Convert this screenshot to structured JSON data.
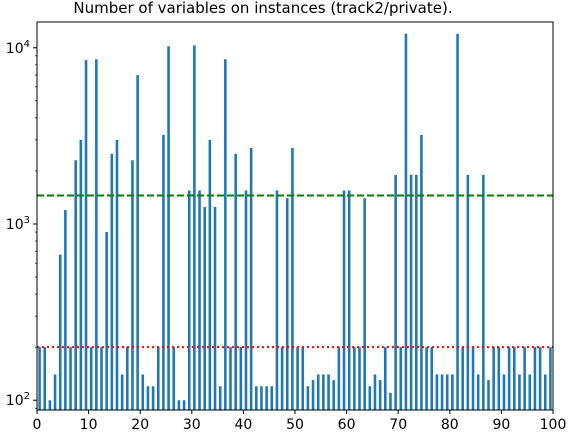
{
  "chart_data": {
    "type": "bar",
    "title": "Number of variables on instances (track2/private).",
    "xlabel": "",
    "ylabel": "",
    "yscale": "log",
    "xlim": [
      0,
      100
    ],
    "ylim": [
      88,
      14000
    ],
    "x_ticks": [
      0,
      10,
      20,
      30,
      40,
      50,
      60,
      70,
      80,
      90,
      100
    ],
    "y_ticks": [
      {
        "value": 100,
        "base": "10",
        "exp": "2"
      },
      {
        "value": 1000,
        "base": "10",
        "exp": "3"
      },
      {
        "value": 10000,
        "base": "10",
        "exp": "4"
      }
    ],
    "bar_color": "#1f77b4",
    "x": [
      0,
      1,
      2,
      3,
      4,
      5,
      6,
      7,
      8,
      9,
      10,
      11,
      12,
      13,
      14,
      15,
      16,
      17,
      18,
      19,
      20,
      21,
      22,
      23,
      24,
      25,
      26,
      27,
      28,
      29,
      30,
      31,
      32,
      33,
      34,
      35,
      36,
      37,
      38,
      39,
      40,
      41,
      42,
      43,
      44,
      45,
      46,
      47,
      48,
      49,
      50,
      51,
      52,
      53,
      54,
      55,
      56,
      57,
      58,
      59,
      60,
      61,
      62,
      63,
      64,
      65,
      66,
      67,
      68,
      69,
      70,
      71,
      72,
      73,
      74,
      75,
      76,
      77,
      78,
      79,
      80,
      81,
      82,
      83,
      84,
      85,
      86,
      87,
      88,
      89,
      90,
      91,
      92,
      93,
      94,
      95,
      96,
      97,
      98,
      99
    ],
    "values": [
      200,
      200,
      100,
      140,
      670,
      1200,
      200,
      2300,
      3000,
      8500,
      200,
      8600,
      200,
      900,
      2500,
      3000,
      140,
      200,
      2300,
      7000,
      140,
      120,
      120,
      200,
      3200,
      10200,
      200,
      100,
      100,
      1550,
      10300,
      1550,
      1250,
      3000,
      1250,
      120,
      8600,
      200,
      2500,
      200,
      1550,
      2700,
      120,
      120,
      120,
      120,
      1550,
      200,
      1400,
      2700,
      200,
      200,
      120,
      130,
      140,
      140,
      140,
      130,
      200,
      1550,
      1550,
      200,
      200,
      1400,
      120,
      140,
      130,
      200,
      110,
      1900,
      200,
      12000,
      1900,
      1900,
      3200,
      200,
      200,
      140,
      140,
      140,
      140,
      12000,
      200,
      1900,
      200,
      140,
      1900,
      130,
      200,
      200,
      140,
      200,
      200,
      140,
      200,
      140,
      200,
      200,
      140,
      200
    ],
    "reference_lines": [
      {
        "value": 1450,
        "color": "#008000",
        "style": "dashed"
      },
      {
        "value": 200,
        "color": "#ff0000",
        "style": "dotted"
      }
    ]
  }
}
